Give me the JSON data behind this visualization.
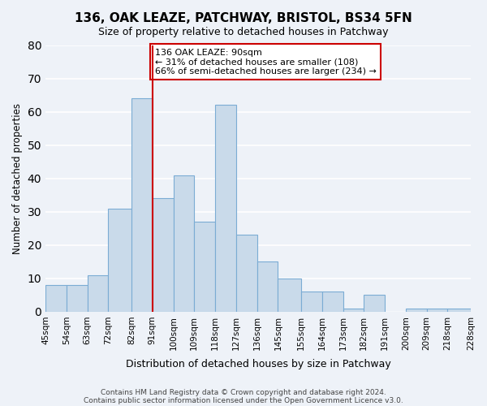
{
  "title": "136, OAK LEAZE, PATCHWAY, BRISTOL, BS34 5FN",
  "subtitle": "Size of property relative to detached houses in Patchway",
  "xlabel": "Distribution of detached houses by size in Patchway",
  "ylabel": "Number of detached properties",
  "bin_labels": [
    "45sqm",
    "54sqm",
    "63sqm",
    "72sqm",
    "82sqm",
    "91sqm",
    "100sqm",
    "109sqm",
    "118sqm",
    "127sqm",
    "136sqm",
    "145sqm",
    "155sqm",
    "164sqm",
    "173sqm",
    "182sqm",
    "191sqm",
    "200sqm",
    "209sqm",
    "218sqm",
    "228sqm"
  ],
  "bar_heights": [
    8,
    8,
    11,
    31,
    64,
    34,
    41,
    27,
    62,
    23,
    15,
    10,
    6,
    6,
    1,
    5,
    0,
    1,
    1,
    1
  ],
  "bin_edges": [
    45,
    54,
    63,
    72,
    82,
    91,
    100,
    109,
    118,
    127,
    136,
    145,
    155,
    164,
    173,
    182,
    191,
    200,
    209,
    218,
    228
  ],
  "property_line_x": 91,
  "bar_color": "#c9daea",
  "bar_edge_color": "#7bacd4",
  "line_color": "#cc0000",
  "annotation_text": "136 OAK LEAZE: 90sqm\n← 31% of detached houses are smaller (108)\n66% of semi-detached houses are larger (234) →",
  "annotation_box_color": "#ffffff",
  "annotation_box_edge": "#cc0000",
  "ylim": [
    0,
    80
  ],
  "yticks": [
    0,
    10,
    20,
    30,
    40,
    50,
    60,
    70,
    80
  ],
  "background_color": "#eef2f8",
  "grid_color": "#ffffff",
  "footer1": "Contains HM Land Registry data © Crown copyright and database right 2024.",
  "footer2": "Contains public sector information licensed under the Open Government Licence v3.0."
}
